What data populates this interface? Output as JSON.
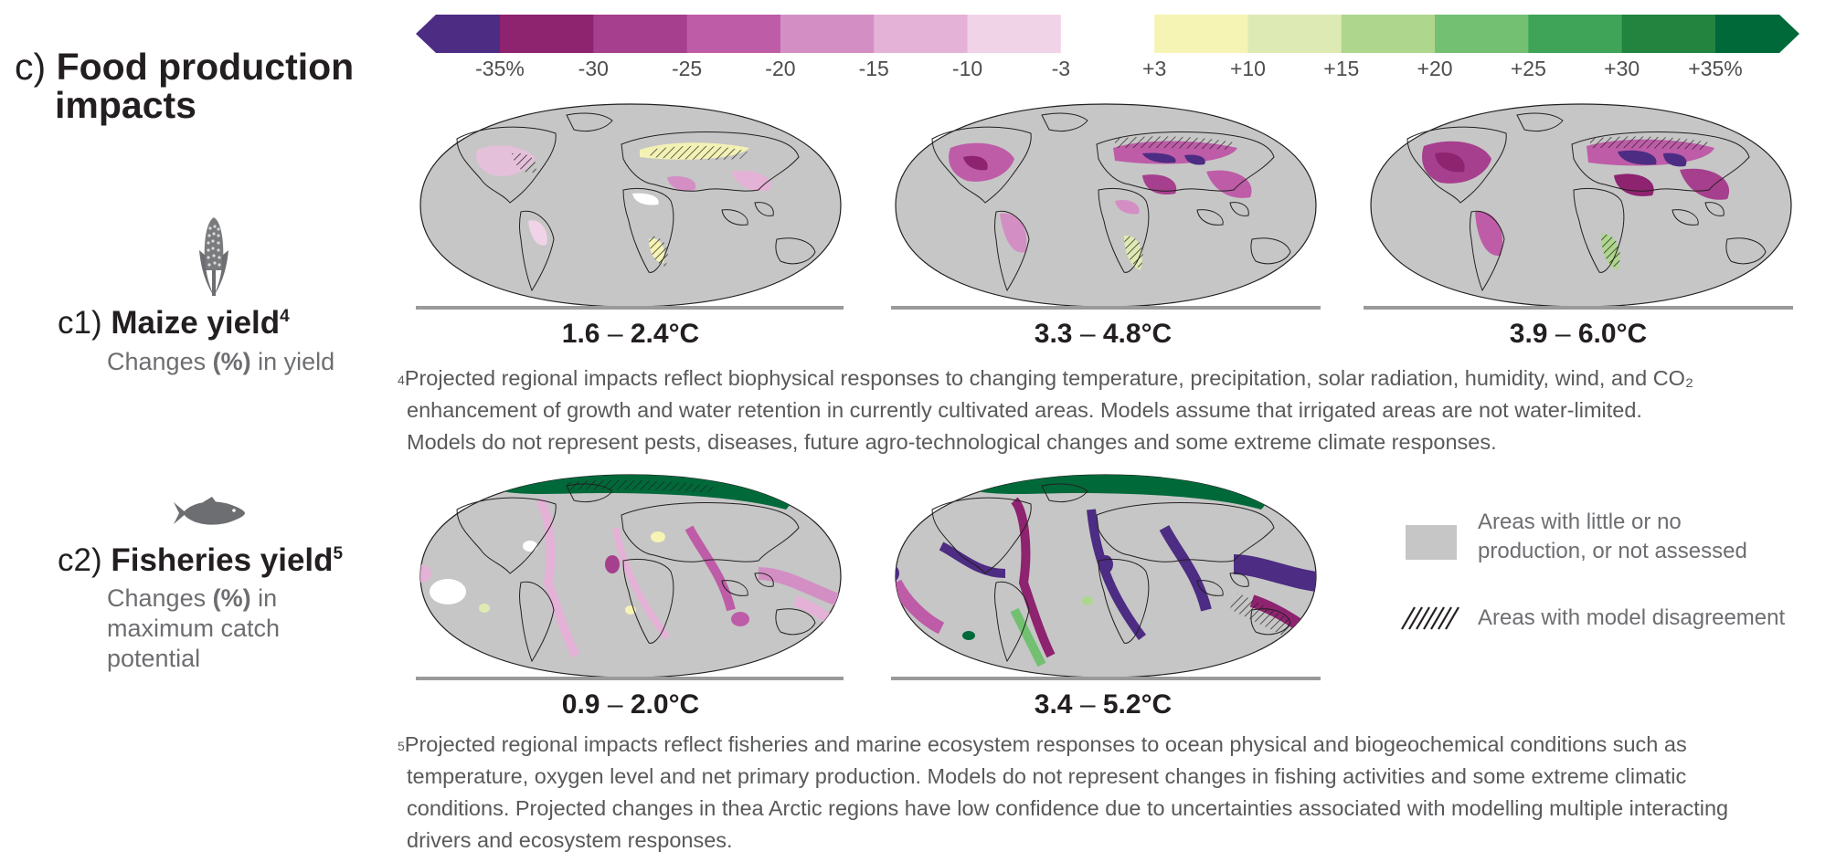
{
  "section": {
    "letter": "c)",
    "title_line1": "Food production",
    "title_line2": "impacts"
  },
  "colorbar": {
    "colors": [
      "#4d2c83",
      "#8e2370",
      "#a63f8d",
      "#be5ca8",
      "#d38fc4",
      "#e4b2d6",
      "#f1d3e8",
      "#ffffff",
      "#f5f4b4",
      "#deeab3",
      "#aed68d",
      "#73c073",
      "#3fa358",
      "#22843f",
      "#00693a"
    ],
    "ticks": [
      "-35%",
      "-30",
      "-25",
      "-20",
      "-15",
      "-10",
      "-3",
      "+3",
      "+10",
      "+15",
      "+20",
      "+25",
      "+30",
      "+35%"
    ]
  },
  "maize": {
    "icon": "corn-icon",
    "number": "c1)",
    "title": "Maize yield",
    "footnote_mark": "4",
    "desc_pre": "Changes ",
    "desc_bold": "(%)",
    "desc_post": " in yield",
    "maps": [
      {
        "low": "1.6",
        "dash": "–",
        "high": "2.4°C"
      },
      {
        "low": "3.3",
        "dash": "–",
        "high": "4.8°C"
      },
      {
        "low": "3.9",
        "dash": "–",
        "high": "6.0°C"
      }
    ],
    "note_mark": "4",
    "note_line1": "Projected regional impacts reflect biophysical responses to changing temperature, precipitation, solar radiation, humidity, wind, and CO₂",
    "note_line2": "enhancement of growth and water retention in currently cultivated areas. Models assume that irrigated areas are not water-limited.",
    "note_line3": "Models do not represent pests, diseases, future agro-technological changes and some extreme climate responses."
  },
  "fisheries": {
    "icon": "fish-icon",
    "number": "c2)",
    "title": "Fisheries yield",
    "footnote_mark": "5",
    "desc_pre": "Changes ",
    "desc_bold": "(%)",
    "desc_post": " in",
    "desc_line2": "maximum catch",
    "desc_line3": "potential",
    "maps": [
      {
        "low": "0.9",
        "dash": "–",
        "high": "2.0°C"
      },
      {
        "low": "3.4",
        "dash": "–",
        "high": "5.2°C"
      }
    ],
    "note_mark": "5",
    "note_line1": "Projected regional impacts reflect fisheries and marine ecosystem responses to ocean physical and biogeochemical conditions such as",
    "note_line2": "temperature, oxygen level and net primary production. Models do not represent changes in fishing activities and some extreme climatic",
    "note_line3": "conditions. Projected changes in thea Arctic regions have low confidence due to uncertainties associated with modelling multiple interacting",
    "note_line4": "drivers and ecosystem responses."
  },
  "legend": {
    "gray_line1": "Areas with little or no",
    "gray_line2": "production, or not assessed",
    "hatch_label": "Areas with model disagreement"
  }
}
